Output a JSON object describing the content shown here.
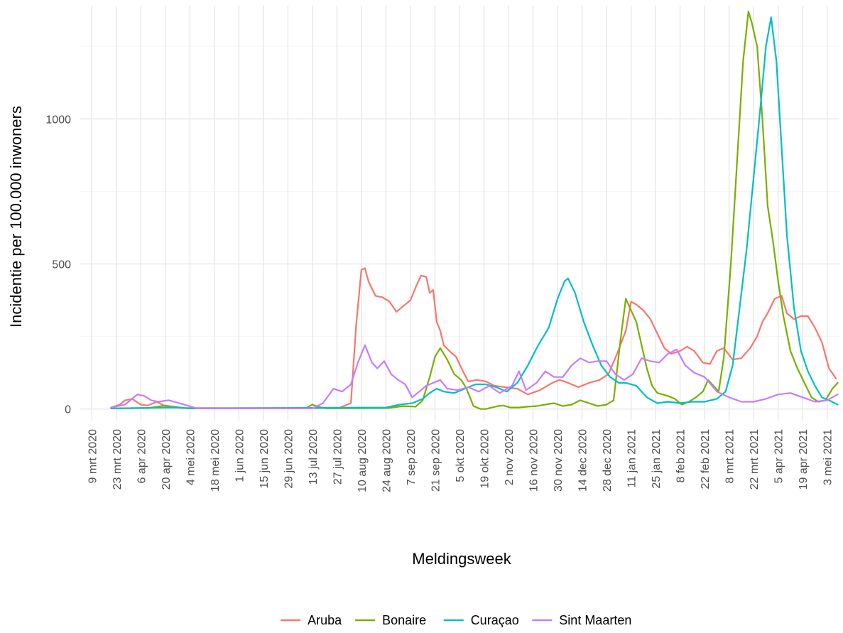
{
  "chart_data": {
    "type": "line",
    "xlabel": "Meldingsweek",
    "ylabel": "Incidentie per 100.000 inwoners",
    "ylim": [
      -40,
      1390
    ],
    "y_ticks": [
      0,
      500,
      1000
    ],
    "y_tick_labels": [
      "0",
      "500",
      "1000"
    ],
    "x_ticks": [
      "2020-03-09",
      "2020-03-23",
      "2020-04-06",
      "2020-04-20",
      "2020-05-04",
      "2020-05-18",
      "2020-06-01",
      "2020-06-15",
      "2020-06-29",
      "2020-07-13",
      "2020-07-27",
      "2020-08-10",
      "2020-08-24",
      "2020-09-07",
      "2020-09-21",
      "2020-10-05",
      "2020-10-19",
      "2020-11-02",
      "2020-11-16",
      "2020-11-30",
      "2020-12-14",
      "2020-12-28",
      "2021-01-11",
      "2021-01-25",
      "2021-02-08",
      "2021-02-22",
      "2021-03-08",
      "2021-03-22",
      "2021-04-05",
      "2021-04-19",
      "2021-05-03"
    ],
    "x_tick_labels": [
      "9 mrt 2020",
      "23 mrt 2020",
      "6 apr 2020",
      "20 apr 2020",
      "4 mei 2020",
      "18 mei 2020",
      "1 jun 2020",
      "15 jun 2020",
      "29 jun 2020",
      "13 jul 2020",
      "27 jul 2020",
      "10 aug 2020",
      "24 aug 2020",
      "7 sep 2020",
      "21 sep 2020",
      "5 okt 2020",
      "19 okt 2020",
      "2 nov 2020",
      "16 nov 2020",
      "30 nov 2020",
      "14 dec 2020",
      "28 dec 2020",
      "11 jan 2021",
      "25 jan 2021",
      "8 feb 2021",
      "22 feb 2021",
      "8 mrt 2021",
      "22 mrt 2021",
      "5 apr 2021",
      "19 apr 2021",
      "3 mei 2021"
    ],
    "grid": true,
    "legend_position": "bottom",
    "series": [
      {
        "name": "Aruba",
        "color": "#F8766D",
        "x": [
          "2020-03-20",
          "2020-03-25",
          "2020-03-28",
          "2020-04-01",
          "2020-04-06",
          "2020-04-10",
          "2020-04-15",
          "2020-04-20",
          "2020-04-25",
          "2020-05-01",
          "2020-07-28",
          "2020-08-04",
          "2020-08-07",
          "2020-08-10",
          "2020-08-12",
          "2020-08-14",
          "2020-08-18",
          "2020-08-22",
          "2020-08-26",
          "2020-08-30",
          "2020-09-03",
          "2020-09-07",
          "2020-09-10",
          "2020-09-13",
          "2020-09-16",
          "2020-09-18",
          "2020-09-20",
          "2020-09-22",
          "2020-09-24",
          "2020-09-26",
          "2020-09-30",
          "2020-10-03",
          "2020-10-07",
          "2020-10-10",
          "2020-10-15",
          "2020-10-20",
          "2020-10-25",
          "2020-10-31",
          "2020-11-07",
          "2020-11-13",
          "2020-11-20",
          "2020-11-27",
          "2020-12-01",
          "2020-12-04",
          "2020-12-08",
          "2020-12-12",
          "2020-12-18",
          "2020-12-24",
          "2020-12-29",
          "2021-01-03",
          "2021-01-08",
          "2021-01-11",
          "2021-01-14",
          "2021-01-18",
          "2021-01-22",
          "2021-01-26",
          "2021-01-30",
          "2021-02-03",
          "2021-02-08",
          "2021-02-12",
          "2021-02-16",
          "2021-02-21",
          "2021-02-25",
          "2021-03-01",
          "2021-03-05",
          "2021-03-10",
          "2021-03-15",
          "2021-03-20",
          "2021-03-24",
          "2021-03-27",
          "2021-03-30",
          "2021-04-03",
          "2021-04-07",
          "2021-04-10",
          "2021-04-14",
          "2021-04-18",
          "2021-04-22",
          "2021-04-26",
          "2021-04-30",
          "2021-05-04",
          "2021-05-08"
        ],
        "y": [
          5,
          15,
          30,
          35,
          15,
          12,
          25,
          10,
          8,
          3,
          3,
          20,
          290,
          480,
          485,
          440,
          390,
          385,
          370,
          335,
          355,
          375,
          420,
          460,
          455,
          400,
          410,
          300,
          270,
          220,
          195,
          180,
          130,
          95,
          100,
          95,
          80,
          75,
          70,
          50,
          65,
          90,
          100,
          95,
          85,
          75,
          90,
          100,
          120,
          190,
          270,
          370,
          360,
          340,
          310,
          260,
          210,
          190,
          200,
          215,
          200,
          160,
          155,
          200,
          210,
          170,
          175,
          210,
          250,
          300,
          330,
          380,
          390,
          330,
          310,
          320,
          320,
          280,
          230,
          140,
          105
        ]
      },
      {
        "name": "Bonaire",
        "color": "#7CAE00",
        "x": [
          "2020-03-20",
          "2020-04-10",
          "2020-04-20",
          "2020-04-27",
          "2020-05-04",
          "2020-07-09",
          "2020-07-13",
          "2020-07-16",
          "2020-07-21",
          "2020-08-25",
          "2020-09-03",
          "2020-09-10",
          "2020-09-14",
          "2020-09-18",
          "2020-09-21",
          "2020-09-24",
          "2020-09-28",
          "2020-10-02",
          "2020-10-06",
          "2020-10-09",
          "2020-10-13",
          "2020-10-17",
          "2020-10-20",
          "2020-10-27",
          "2020-10-30",
          "2020-11-03",
          "2020-11-08",
          "2020-11-13",
          "2020-11-18",
          "2020-11-23",
          "2020-11-28",
          "2020-12-03",
          "2020-12-08",
          "2020-12-13",
          "2020-12-18",
          "2020-12-23",
          "2020-12-28",
          "2021-01-01",
          "2021-01-05",
          "2021-01-08",
          "2021-01-11",
          "2021-01-14",
          "2021-01-17",
          "2021-01-20",
          "2021-01-23",
          "2021-01-26",
          "2021-01-29",
          "2021-02-01",
          "2021-02-05",
          "2021-02-09",
          "2021-02-13",
          "2021-02-17",
          "2021-02-21",
          "2021-02-24",
          "2021-02-27",
          "2021-03-02",
          "2021-03-05",
          "2021-03-09",
          "2021-03-13",
          "2021-03-16",
          "2021-03-19",
          "2021-03-21",
          "2021-03-24",
          "2021-03-27",
          "2021-03-30",
          "2021-04-02",
          "2021-04-05",
          "2021-04-08",
          "2021-04-12",
          "2021-04-16",
          "2021-04-20",
          "2021-04-24",
          "2021-04-28",
          "2021-05-02",
          "2021-05-06",
          "2021-05-09"
        ],
        "y": [
          2,
          3,
          12,
          5,
          2,
          2,
          15,
          8,
          2,
          3,
          10,
          8,
          30,
          110,
          180,
          210,
          170,
          120,
          100,
          70,
          10,
          0,
          0,
          10,
          12,
          5,
          5,
          8,
          10,
          15,
          20,
          10,
          15,
          30,
          20,
          10,
          15,
          30,
          240,
          380,
          340,
          300,
          220,
          140,
          80,
          55,
          50,
          45,
          35,
          15,
          25,
          40,
          60,
          100,
          80,
          60,
          180,
          500,
          900,
          1200,
          1370,
          1330,
          1250,
          1000,
          700,
          580,
          440,
          320,
          200,
          140,
          90,
          40,
          25,
          30,
          70,
          90
        ]
      },
      {
        "name": "Curaçao",
        "color": "#00BFC4",
        "x": [
          "2020-03-20",
          "2020-04-25",
          "2020-05-04",
          "2020-08-24",
          "2020-09-01",
          "2020-09-08",
          "2020-09-14",
          "2020-09-18",
          "2020-09-22",
          "2020-09-26",
          "2020-10-02",
          "2020-10-08",
          "2020-10-14",
          "2020-10-20",
          "2020-10-26",
          "2020-11-01",
          "2020-11-07",
          "2020-11-13",
          "2020-11-19",
          "2020-11-25",
          "2020-11-30",
          "2020-12-04",
          "2020-12-06",
          "2020-12-10",
          "2020-12-15",
          "2020-12-20",
          "2020-12-25",
          "2020-12-30",
          "2021-01-04",
          "2021-01-08",
          "2021-01-14",
          "2021-01-20",
          "2021-01-26",
          "2021-02-01",
          "2021-02-08",
          "2021-02-15",
          "2021-02-22",
          "2021-03-01",
          "2021-03-06",
          "2021-03-10",
          "2021-03-14",
          "2021-03-18",
          "2021-03-22",
          "2021-03-26",
          "2021-03-29",
          "2021-04-01",
          "2021-04-04",
          "2021-04-07",
          "2021-04-10",
          "2021-04-14",
          "2021-04-18",
          "2021-04-22",
          "2021-04-26",
          "2021-04-30",
          "2021-05-04",
          "2021-05-09"
        ],
        "y": [
          2,
          5,
          2,
          5,
          15,
          20,
          35,
          55,
          70,
          60,
          55,
          70,
          85,
          85,
          75,
          60,
          90,
          150,
          220,
          280,
          380,
          440,
          450,
          400,
          300,
          220,
          150,
          110,
          90,
          90,
          80,
          40,
          20,
          25,
          20,
          25,
          25,
          35,
          60,
          150,
          350,
          550,
          800,
          1050,
          1250,
          1350,
          1200,
          900,
          600,
          350,
          200,
          130,
          80,
          40,
          30,
          15
        ]
      },
      {
        "name": "Sint Maarten",
        "color": "#C77CFF",
        "x": [
          "2020-03-20",
          "2020-03-28",
          "2020-04-01",
          "2020-04-04",
          "2020-04-08",
          "2020-04-12",
          "2020-04-16",
          "2020-04-22",
          "2020-04-28",
          "2020-05-08",
          "2020-07-13",
          "2020-07-19",
          "2020-07-25",
          "2020-07-30",
          "2020-08-04",
          "2020-08-08",
          "2020-08-12",
          "2020-08-16",
          "2020-08-19",
          "2020-08-23",
          "2020-08-27",
          "2020-08-31",
          "2020-09-04",
          "2020-09-08",
          "2020-09-12",
          "2020-09-16",
          "2020-09-20",
          "2020-09-24",
          "2020-09-28",
          "2020-10-04",
          "2020-10-10",
          "2020-10-16",
          "2020-10-22",
          "2020-10-28",
          "2020-11-04",
          "2020-11-08",
          "2020-11-12",
          "2020-11-18",
          "2020-11-23",
          "2020-11-28",
          "2020-12-03",
          "2020-12-08",
          "2020-12-13",
          "2020-12-18",
          "2020-12-23",
          "2020-12-28",
          "2021-01-02",
          "2021-01-07",
          "2021-01-12",
          "2021-01-17",
          "2021-01-22",
          "2021-01-27",
          "2021-02-01",
          "2021-02-06",
          "2021-02-11",
          "2021-02-16",
          "2021-02-22",
          "2021-03-01",
          "2021-03-08",
          "2021-03-15",
          "2021-03-22",
          "2021-03-29",
          "2021-04-05",
          "2021-04-12",
          "2021-04-19",
          "2021-04-26",
          "2021-05-03",
          "2021-05-09"
        ],
        "y": [
          5,
          15,
          35,
          50,
          45,
          30,
          25,
          30,
          20,
          2,
          2,
          20,
          70,
          60,
          85,
          160,
          220,
          160,
          140,
          165,
          120,
          100,
          85,
          40,
          60,
          80,
          90,
          100,
          70,
          65,
          75,
          60,
          80,
          55,
          80,
          130,
          65,
          90,
          130,
          110,
          110,
          150,
          175,
          160,
          165,
          165,
          120,
          100,
          120,
          175,
          165,
          160,
          190,
          205,
          150,
          125,
          110,
          60,
          40,
          25,
          25,
          35,
          50,
          55,
          40,
          25,
          30,
          50
        ]
      }
    ]
  }
}
